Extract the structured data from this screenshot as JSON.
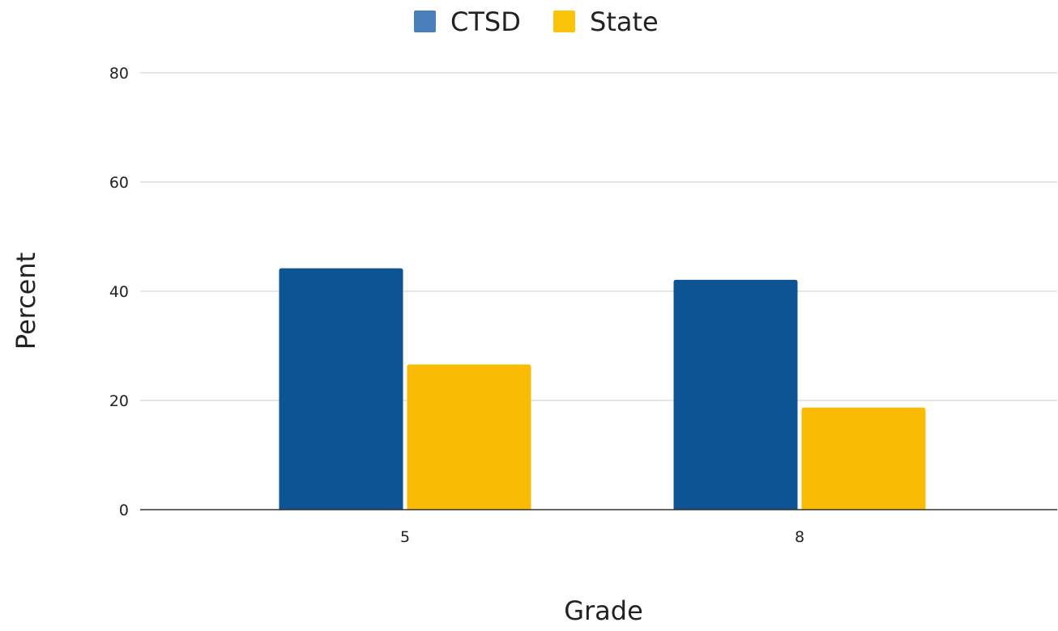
{
  "chart_data": {
    "type": "bar",
    "title": "",
    "xlabel": "Grade",
    "ylabel": "Percent",
    "categories": [
      "5",
      "8"
    ],
    "series": [
      {
        "name": "CTSD",
        "values": [
          44.2,
          42.1
        ],
        "color": "#0e5394"
      },
      {
        "name": "State",
        "values": [
          26.6,
          18.7
        ],
        "color": "#f9bb03"
      }
    ],
    "ylim": [
      0,
      80
    ],
    "yticks": [
      "0",
      "20",
      "40",
      "60",
      "80"
    ],
    "grid": true,
    "legend_position": "top-center",
    "legend_swatch_colors": [
      "#4a7ebb",
      "#fbc30a"
    ]
  }
}
